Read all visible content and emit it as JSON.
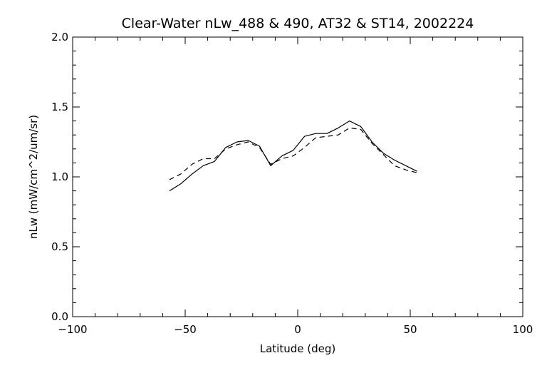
{
  "chart_data": {
    "type": "line",
    "title": "Clear-Water nLw_488 & 490, AT32 & ST14, 2002224",
    "xlabel": "Latitude (deg)",
    "ylabel": "nLw (mW/cm^2/um/sr)",
    "xlim": [
      -100,
      100
    ],
    "ylim": [
      0.0,
      2.0
    ],
    "x_ticks": [
      -100,
      -50,
      0,
      50,
      100
    ],
    "x_tick_labels": [
      "−100",
      "−50",
      "0",
      "50",
      "100"
    ],
    "y_ticks": [
      0.0,
      0.5,
      1.0,
      1.5,
      2.0
    ],
    "y_tick_labels": [
      "0.0",
      "0.5",
      "1.0",
      "1.5",
      "2.0"
    ],
    "grid": false,
    "series": [
      {
        "style": "solid",
        "color": "#000000",
        "x": [
          -57,
          -52,
          -47,
          -42,
          -37,
          -32,
          -27,
          -22,
          -17,
          -12,
          -7,
          -2,
          3,
          8,
          13,
          18,
          23,
          28,
          33,
          38,
          43,
          48,
          53
        ],
        "y": [
          0.9,
          0.95,
          1.02,
          1.08,
          1.11,
          1.21,
          1.25,
          1.26,
          1.22,
          1.08,
          1.15,
          1.19,
          1.29,
          1.31,
          1.31,
          1.35,
          1.4,
          1.36,
          1.25,
          1.17,
          1.12,
          1.08,
          1.04
        ]
      },
      {
        "style": "dashed",
        "color": "#000000",
        "x": [
          -57,
          -52,
          -47,
          -42,
          -37,
          -32,
          -27,
          -22,
          -17,
          -12,
          -7,
          -2,
          3,
          8,
          13,
          18,
          23,
          28,
          33,
          38,
          43,
          48,
          53
        ],
        "y": [
          0.98,
          1.02,
          1.09,
          1.13,
          1.13,
          1.2,
          1.23,
          1.25,
          1.21,
          1.09,
          1.13,
          1.15,
          1.21,
          1.28,
          1.29,
          1.3,
          1.35,
          1.34,
          1.24,
          1.16,
          1.08,
          1.05,
          1.03
        ]
      }
    ]
  }
}
